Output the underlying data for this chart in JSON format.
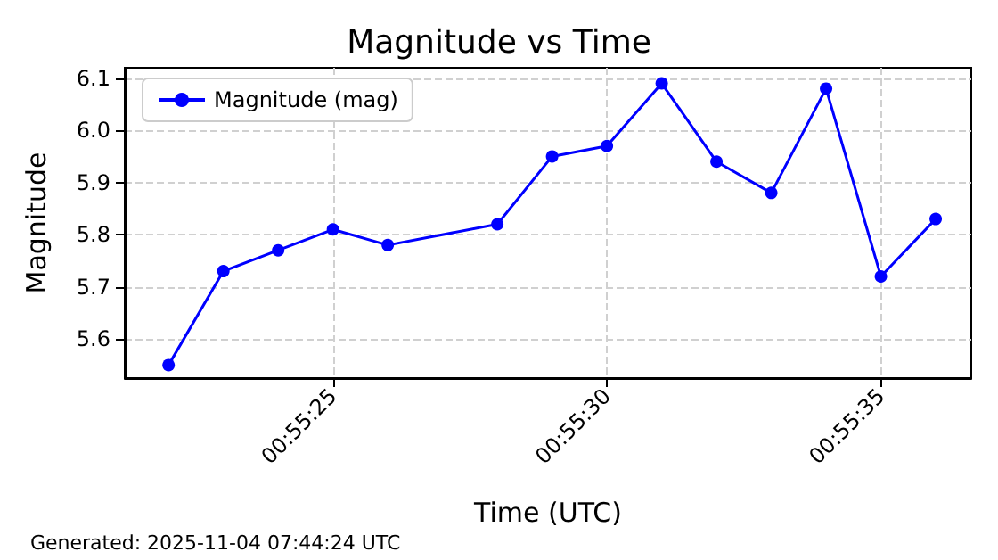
{
  "chart_data": {
    "type": "line",
    "title": "Magnitude vs Time",
    "xlabel": "Time (UTC)",
    "ylabel": "Magnitude",
    "x": [
      0.9227778,
      0.9230556,
      0.9233333,
      0.9236111,
      0.9238889,
      0.9244444,
      0.9247222,
      0.925,
      0.9252778,
      0.9255556,
      0.9258333,
      0.9261111,
      0.9263889,
      0.9266667
    ],
    "series": [
      {
        "name": "Magnitude (mag)",
        "color": "#0000ff",
        "values": [
          5.55,
          5.73,
          5.77,
          5.81,
          5.78,
          5.82,
          5.95,
          5.97,
          6.09,
          5.94,
          5.88,
          6.08,
          5.72,
          5.83
        ]
      }
    ],
    "xlim": [
      0.9225556,
      0.9268472
    ],
    "xticks": [
      {
        "value": 0.9236111,
        "label": "00:55:25"
      },
      {
        "value": 0.925,
        "label": "00:55:30"
      },
      {
        "value": 0.9263889,
        "label": "00:55:35"
      }
    ],
    "ylim": [
      5.525,
      6.12
    ],
    "yticks": [
      5.6,
      5.7,
      5.8,
      5.9,
      {
        "value": 6,
        "label": "6.0"
      },
      6.1
    ],
    "grid": true,
    "legend": "top left",
    "marker": "circle",
    "line_style": "solid",
    "annotations": [
      "Generated: 2025-11-04 07:44:24 UTC"
    ]
  }
}
